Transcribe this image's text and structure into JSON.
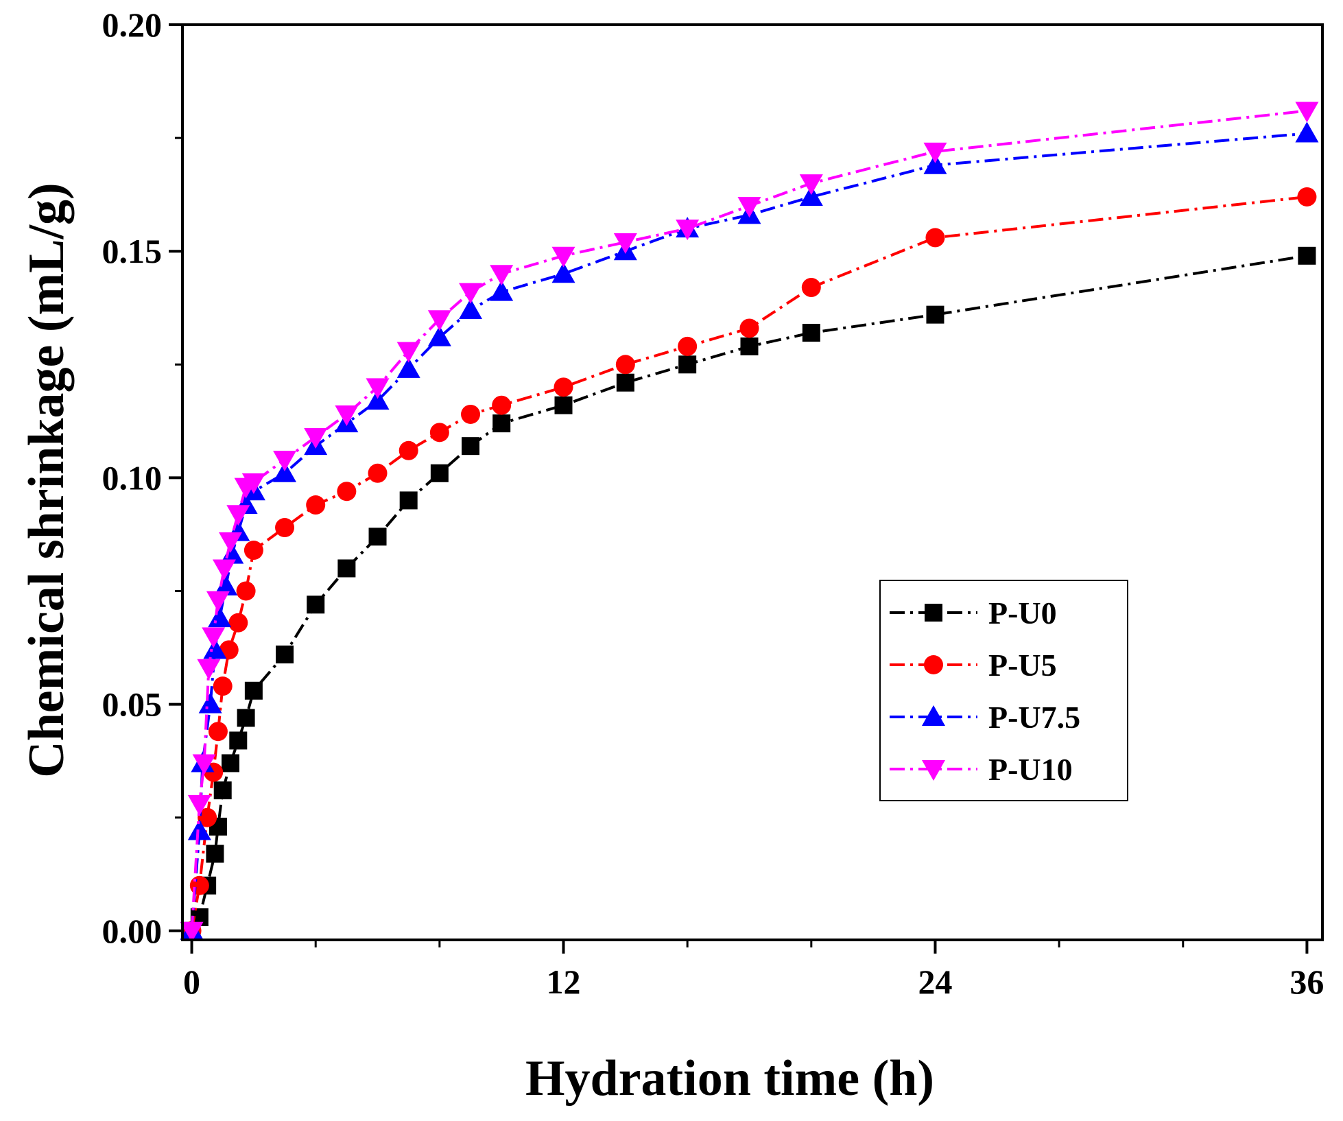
{
  "chart_data": {
    "type": "line",
    "title": "",
    "xlabel": "Hydration time (h)",
    "ylabel": "Chemical shrinkage (mL/g)",
    "xlim": [
      -0.3,
      36.5
    ],
    "ylim": [
      -0.002,
      0.2
    ],
    "xticks": [
      0,
      12,
      24,
      36
    ],
    "xtick_labels": [
      "0",
      "12",
      "24",
      "36"
    ],
    "xminor_ticks": [
      4,
      8,
      16,
      20,
      28,
      32
    ],
    "yticks": [
      0,
      0.05,
      0.1,
      0.15,
      0.2
    ],
    "ytick_labels": [
      "0.00",
      "0.05",
      "0.10",
      "0.15",
      "0.20"
    ],
    "yminor_ticks": [
      0.025,
      0.075,
      0.125,
      0.175
    ],
    "grid": false,
    "legend_position": "center-right",
    "series": [
      {
        "name": "P-U0",
        "color": "#000000",
        "marker": "square",
        "x": [
          0,
          0.25,
          0.5,
          0.75,
          0.85,
          1.0,
          1.25,
          1.5,
          1.75,
          2.0,
          3.0,
          4.0,
          5.0,
          6.0,
          7.0,
          8.0,
          9.0,
          10.0,
          12.0,
          14.0,
          16.0,
          18.0,
          20.0,
          24.0,
          36.0
        ],
        "values": [
          0.0,
          0.003,
          0.01,
          0.017,
          0.023,
          0.031,
          0.037,
          0.042,
          0.047,
          0.053,
          0.061,
          0.072,
          0.08,
          0.087,
          0.095,
          0.101,
          0.107,
          0.112,
          0.116,
          0.121,
          0.125,
          0.129,
          0.132,
          0.136,
          0.149
        ]
      },
      {
        "name": "P-U5",
        "color": "#ff0000",
        "marker": "circle",
        "x": [
          0,
          0.25,
          0.5,
          0.7,
          0.85,
          1.0,
          1.2,
          1.5,
          1.75,
          2.0,
          3.0,
          4.0,
          5.0,
          6.0,
          7.0,
          8.0,
          9.0,
          10.0,
          12.0,
          14.0,
          16.0,
          18.0,
          20.0,
          24.0,
          36.0
        ],
        "values": [
          0.0,
          0.01,
          0.025,
          0.035,
          0.044,
          0.054,
          0.062,
          0.068,
          0.075,
          0.084,
          0.089,
          0.094,
          0.097,
          0.101,
          0.106,
          0.11,
          0.114,
          0.116,
          0.12,
          0.125,
          0.129,
          0.133,
          0.142,
          0.153,
          0.162
        ]
      },
      {
        "name": "P-U7.5",
        "color": "#0000ff",
        "marker": "triangle-up",
        "x": [
          0,
          0.25,
          0.35,
          0.6,
          0.75,
          0.9,
          1.1,
          1.3,
          1.5,
          1.75,
          2.0,
          3.0,
          4.0,
          5.0,
          6.0,
          7.0,
          8.0,
          9.0,
          10.0,
          12.0,
          14.0,
          16.0,
          18.0,
          20.0,
          24.0,
          36.0
        ],
        "values": [
          0.0,
          0.022,
          0.037,
          0.05,
          0.062,
          0.069,
          0.076,
          0.083,
          0.088,
          0.094,
          0.097,
          0.101,
          0.107,
          0.112,
          0.117,
          0.124,
          0.131,
          0.137,
          0.141,
          0.145,
          0.15,
          0.155,
          0.158,
          0.162,
          0.169,
          0.176
        ]
      },
      {
        "name": "P-U10",
        "color": "#ff00ff",
        "marker": "triangle-down",
        "x": [
          0,
          0.25,
          0.4,
          0.55,
          0.7,
          0.85,
          1.05,
          1.25,
          1.5,
          1.75,
          2.0,
          3.0,
          4.0,
          5.0,
          6.0,
          7.0,
          8.0,
          9.0,
          10.0,
          12.0,
          14.0,
          16.0,
          18.0,
          20.0,
          24.0,
          36.0
        ],
        "values": [
          0.0,
          0.028,
          0.037,
          0.058,
          0.065,
          0.073,
          0.08,
          0.086,
          0.092,
          0.098,
          0.099,
          0.104,
          0.109,
          0.114,
          0.12,
          0.128,
          0.135,
          0.141,
          0.145,
          0.149,
          0.152,
          0.155,
          0.16,
          0.165,
          0.172,
          0.181
        ]
      }
    ]
  }
}
